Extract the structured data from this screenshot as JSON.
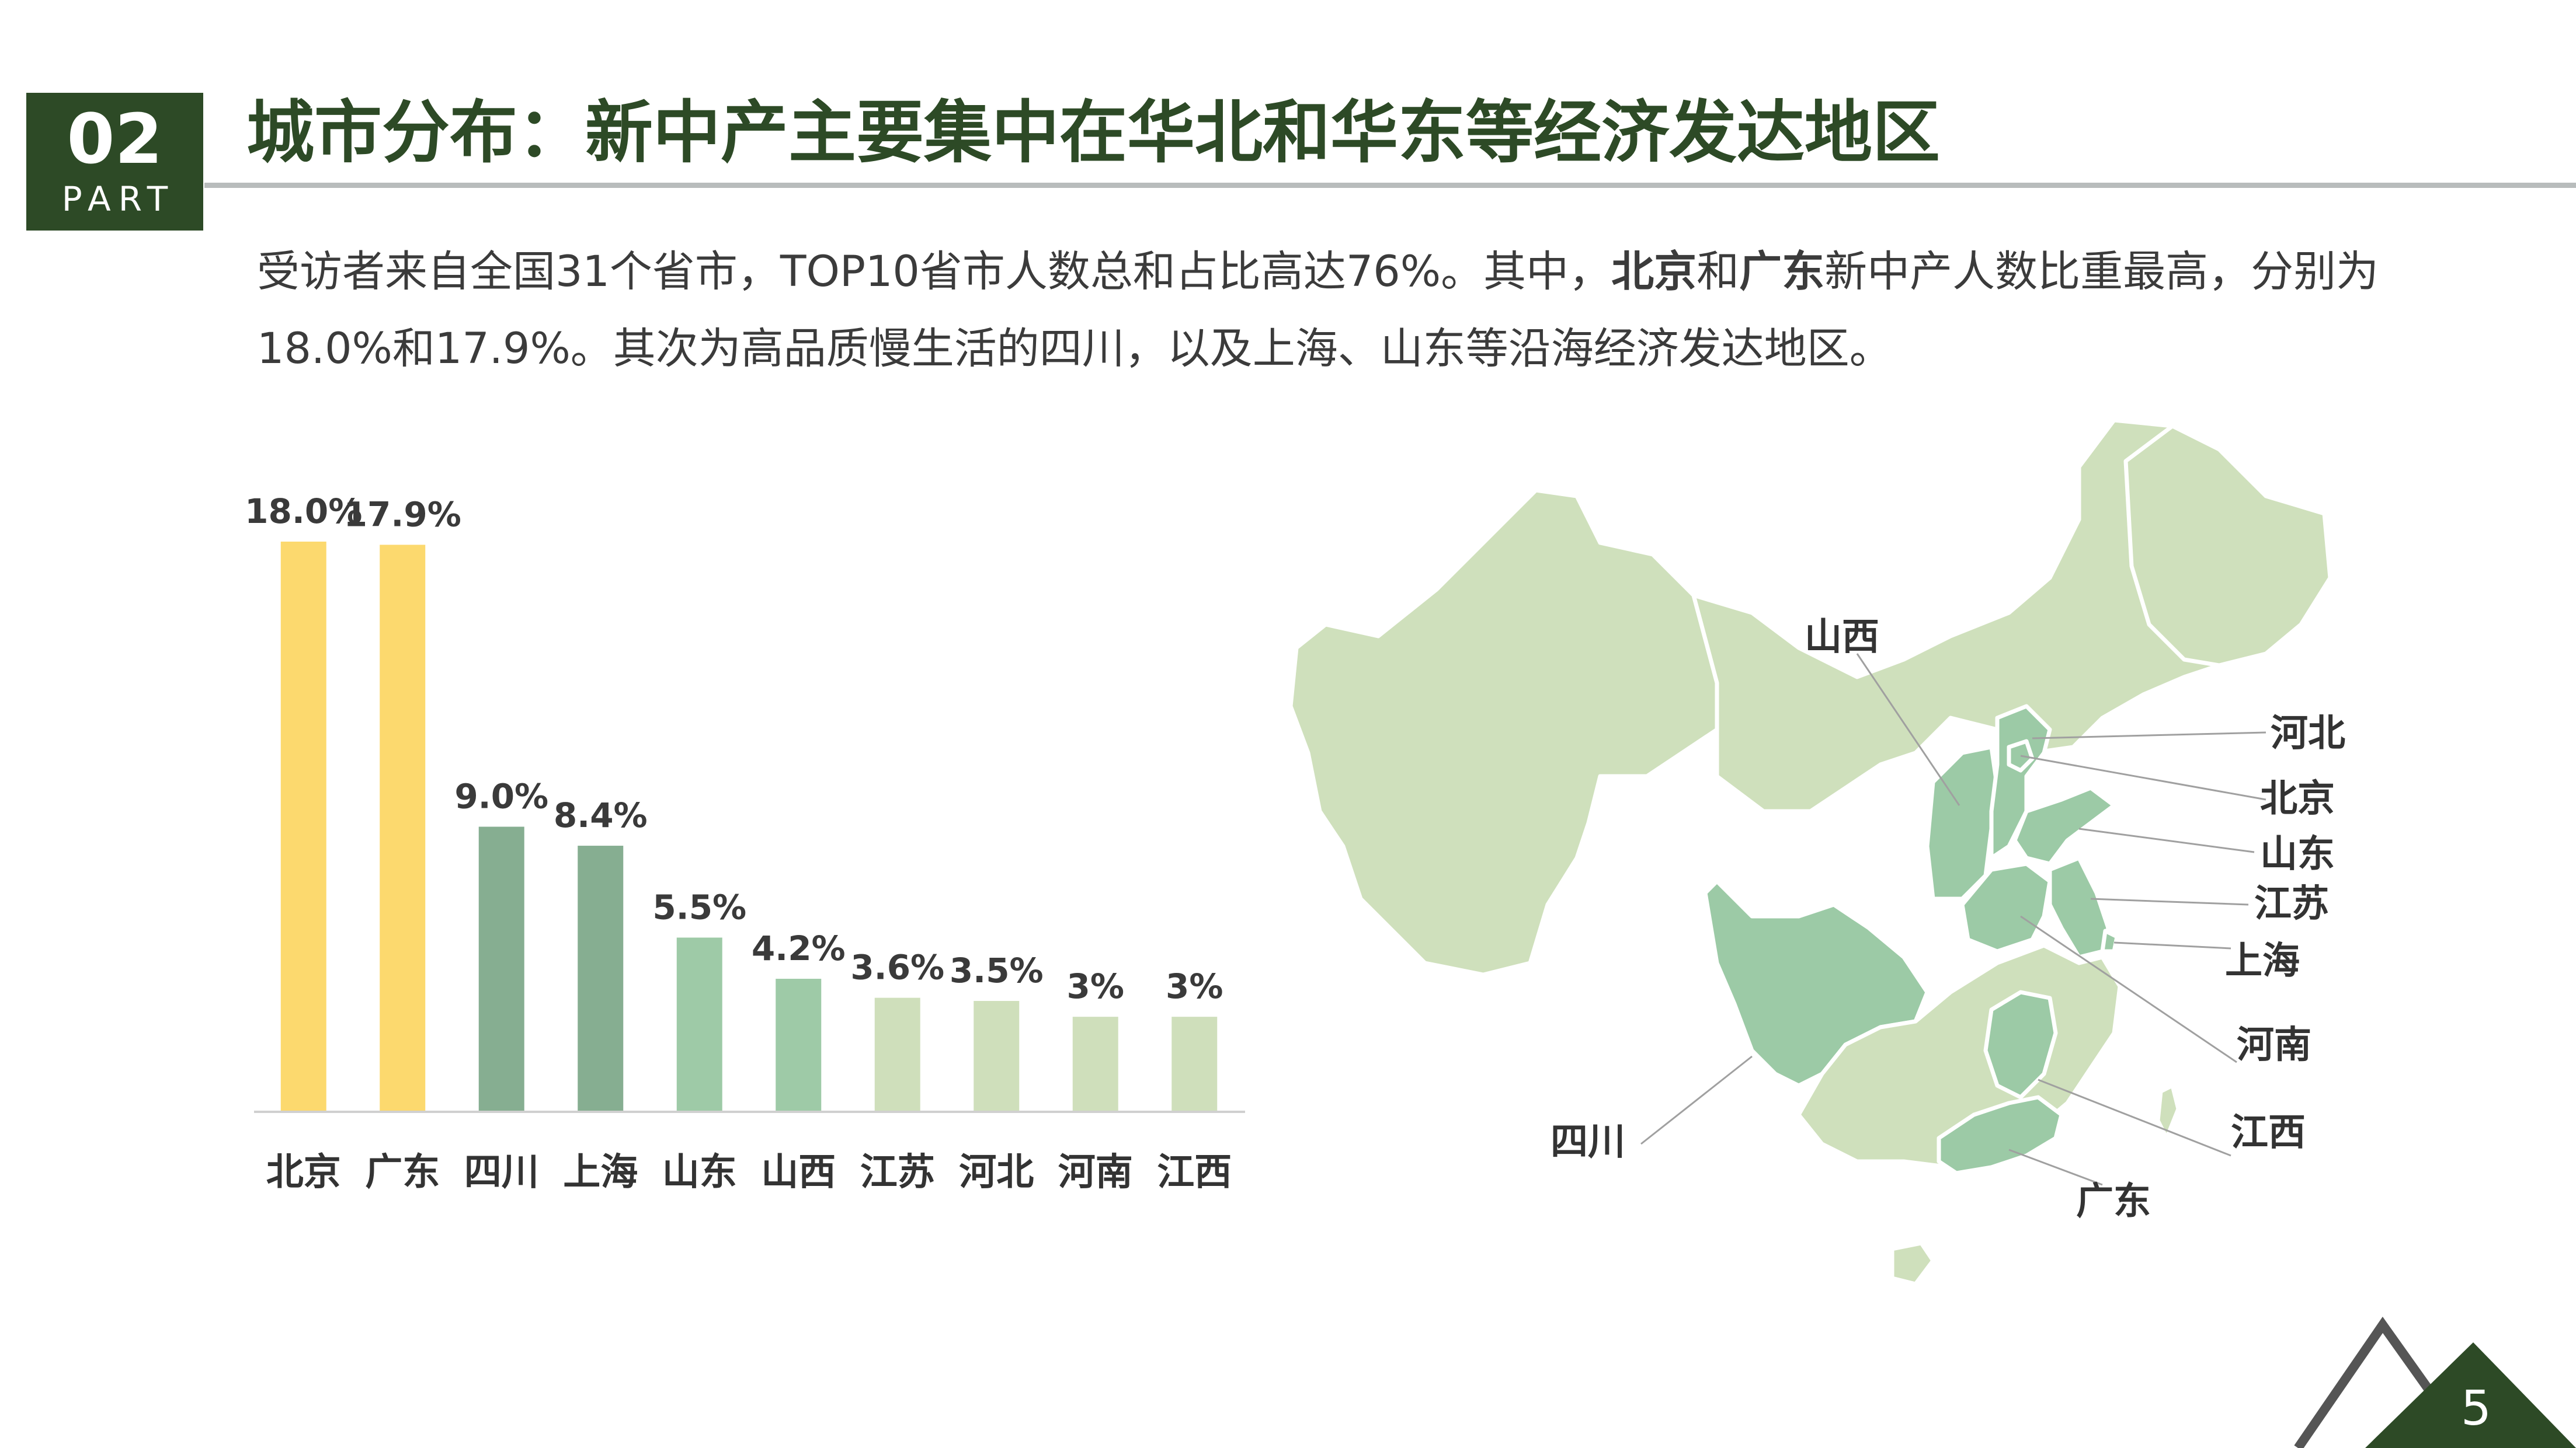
{
  "header": {
    "badge_number": "02",
    "badge_part": "PART",
    "title": "城市分布：新中产主要集中在华北和华东等经济发达地区"
  },
  "intro": {
    "part1": "受访者来自全国31个省市，TOP10省市人数总和占比高达76%。其中，",
    "bold1": "北京",
    "part2": "和",
    "bold2": "广东",
    "part3": "新中产人数比重最高，分别为18.0%和17.9%。其次为高品质慢生活的四川，以及上海、山东等沿海经济发达地区。"
  },
  "chart_data": {
    "type": "bar",
    "categories": [
      "北京",
      "广东",
      "四川",
      "上海",
      "山东",
      "山西",
      "江苏",
      "河北",
      "河南",
      "江西"
    ],
    "values": [
      18.0,
      17.9,
      9.0,
      8.4,
      5.5,
      4.2,
      3.6,
      3.5,
      3,
      3
    ],
    "value_labels": [
      "18.0%",
      "17.9%",
      "9.0%",
      "8.4%",
      "5.5%",
      "4.2%",
      "3.6%",
      "3.5%",
      "3%",
      "3%"
    ],
    "colors": [
      "#fcd96e",
      "#fcd96e",
      "#86ae91",
      "#86ae91",
      "#9ecaa7",
      "#9ecaa7",
      "#cfdfbb",
      "#cfdfbb",
      "#cfdfbb",
      "#cfdfbb"
    ],
    "ylim": [
      0,
      18.0
    ],
    "grid": false,
    "legend": "none"
  },
  "map": {
    "labels": [
      "山西",
      "河北",
      "北京",
      "山东",
      "江苏",
      "上海",
      "河南",
      "江西",
      "广东",
      "四川"
    ],
    "base_color": "#cfe0bc",
    "highlight_color": "#9ccaa6"
  },
  "page_number": "5",
  "colors": {
    "brand_dark": "#2d4a26",
    "rule_gray": "#b8bcbc",
    "corner_gray": "#555555"
  }
}
